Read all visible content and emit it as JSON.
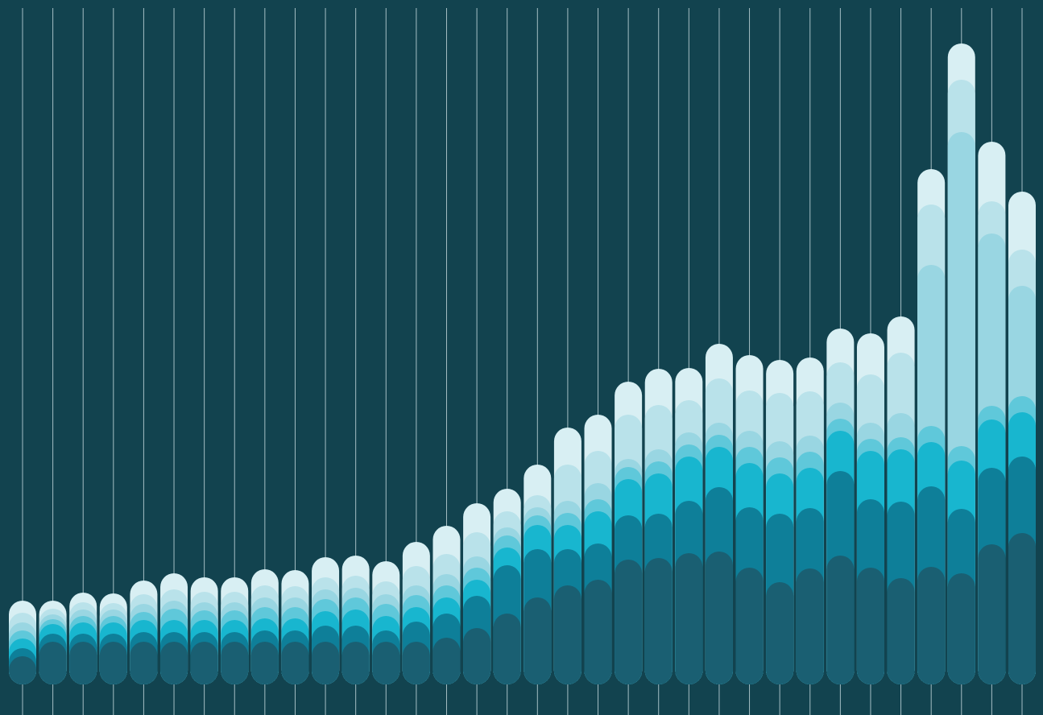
{
  "chart_data": {
    "type": "stacked_bar",
    "categories": [
      null,
      null,
      null,
      null,
      null,
      null,
      null,
      null,
      null,
      null,
      null,
      null,
      null,
      null,
      null,
      null,
      null,
      null,
      null,
      null,
      null,
      null,
      null,
      null,
      null,
      null,
      null,
      null,
      null,
      null,
      null,
      null,
      null,
      null
    ],
    "ylim": [
      0,
      800
    ],
    "grid": true,
    "background": "#12434f",
    "grid_color": "#c9dde2",
    "series": [
      {
        "color": "#1a5f72",
        "values": [
          35,
          53,
          53,
          53,
          53,
          53,
          53,
          53,
          53,
          53,
          53,
          53,
          53,
          53,
          58,
          70,
          88,
          108,
          123,
          130,
          155,
          157,
          163,
          165,
          145,
          127,
          144,
          160,
          145,
          132,
          146,
          138,
          174,
          188
        ]
      },
      {
        "color": "#0e7f99",
        "values": [
          10,
          10,
          10,
          10,
          12,
          12,
          12,
          12,
          14,
          14,
          20,
          20,
          14,
          25,
          30,
          40,
          60,
          60,
          45,
          45,
          55,
          55,
          65,
          80,
          75,
          85,
          75,
          105,
          85,
          95,
          100,
          80,
          95,
          95
        ]
      },
      {
        "color": "#18b6cf",
        "values": [
          12,
          12,
          14,
          14,
          15,
          15,
          15,
          15,
          15,
          15,
          18,
          20,
          18,
          18,
          20,
          20,
          22,
          30,
          30,
          40,
          45,
          50,
          55,
          50,
          55,
          50,
          50,
          50,
          60,
          65,
          55,
          60,
          60,
          55
        ]
      },
      {
        "color": "#5fc8da",
        "values": [
          10,
          6,
          8,
          8,
          10,
          14,
          12,
          12,
          14,
          14,
          15,
          15,
          15,
          15,
          15,
          15,
          15,
          12,
          15,
          15,
          15,
          15,
          15,
          15,
          20,
          20,
          20,
          15,
          15,
          15,
          20,
          18,
          17,
          20
        ]
      },
      {
        "color": "#99d6e2",
        "values": [
          10,
          6,
          8,
          8,
          10,
          10,
          10,
          10,
          12,
          12,
          12,
          12,
          12,
          12,
          14,
          14,
          10,
          10,
          15,
          20,
          10,
          15,
          15,
          15,
          20,
          20,
          20,
          20,
          20,
          30,
          200,
          390,
          214,
          137
        ]
      },
      {
        "color": "#b9e2ea",
        "values": [
          12,
          7,
          9,
          8,
          12,
          14,
          13,
          13,
          15,
          14,
          15,
          15,
          16,
          24,
          25,
          30,
          20,
          15,
          45,
          40,
          55,
          55,
          40,
          55,
          50,
          60,
          55,
          50,
          60,
          75,
          75,
          65,
          40,
          45
        ]
      },
      {
        "color": "#d8eff3",
        "values": [
          15,
          10,
          12,
          12,
          17,
          20,
          18,
          18,
          20,
          20,
          25,
          25,
          25,
          30,
          35,
          36,
          28,
          38,
          46,
          45,
          41,
          45,
          40,
          43,
          44,
          41,
          42,
          42,
          51,
          45,
          44,
          45,
          74,
          72
        ]
      }
    ]
  }
}
